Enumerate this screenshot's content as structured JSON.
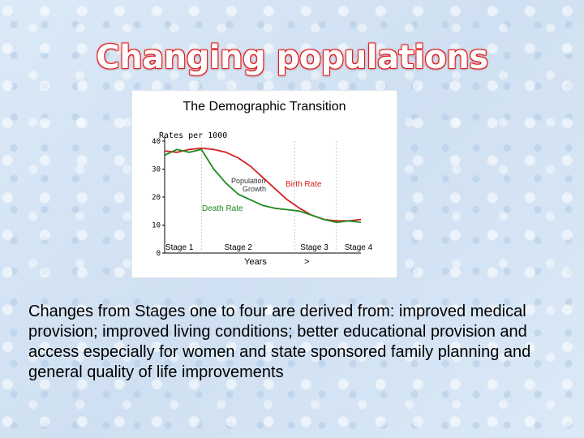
{
  "slide": {
    "title": "Changing populations",
    "body": "Changes from Stages one to four are derived from: improved medical provision; improved living conditions; better educational provision and access especially for women and state sponsored family planning and general quality of life improvements"
  },
  "chart_data": {
    "type": "line",
    "title": "The Demographic Transition",
    "ylabel": "Rates per 1000",
    "xlabel": "Years",
    "ylim": [
      0,
      40
    ],
    "yticks": [
      0,
      10,
      20,
      30,
      40
    ],
    "stages": [
      "Stage 1",
      "Stage 2",
      "Stage 3",
      "Stage 4"
    ],
    "annotations": [
      "Birth Rate",
      "Death Rate",
      "Population Growth"
    ],
    "x": [
      0,
      0.5,
      1,
      1.5,
      2,
      2.5,
      3,
      3.5,
      4,
      4.5,
      5,
      5.5,
      6,
      6.5,
      7,
      7.5,
      8
    ],
    "series": [
      {
        "name": "Birth Rate",
        "color": "#d62020",
        "values": [
          36.5,
          36,
          37,
          37.5,
          37,
          36,
          34,
          31,
          27,
          23,
          19,
          16,
          13.5,
          12,
          11.5,
          11.5,
          12
        ]
      },
      {
        "name": "Death Rate",
        "color": "#1e8a1e",
        "values": [
          35,
          37,
          36,
          37,
          30,
          25,
          21,
          19,
          17,
          16,
          15.5,
          15,
          13.5,
          12,
          11,
          11.5,
          11
        ]
      }
    ],
    "colors": {
      "birth": "#d62020",
      "death": "#1e8a1e",
      "axis": "#000000"
    }
  }
}
